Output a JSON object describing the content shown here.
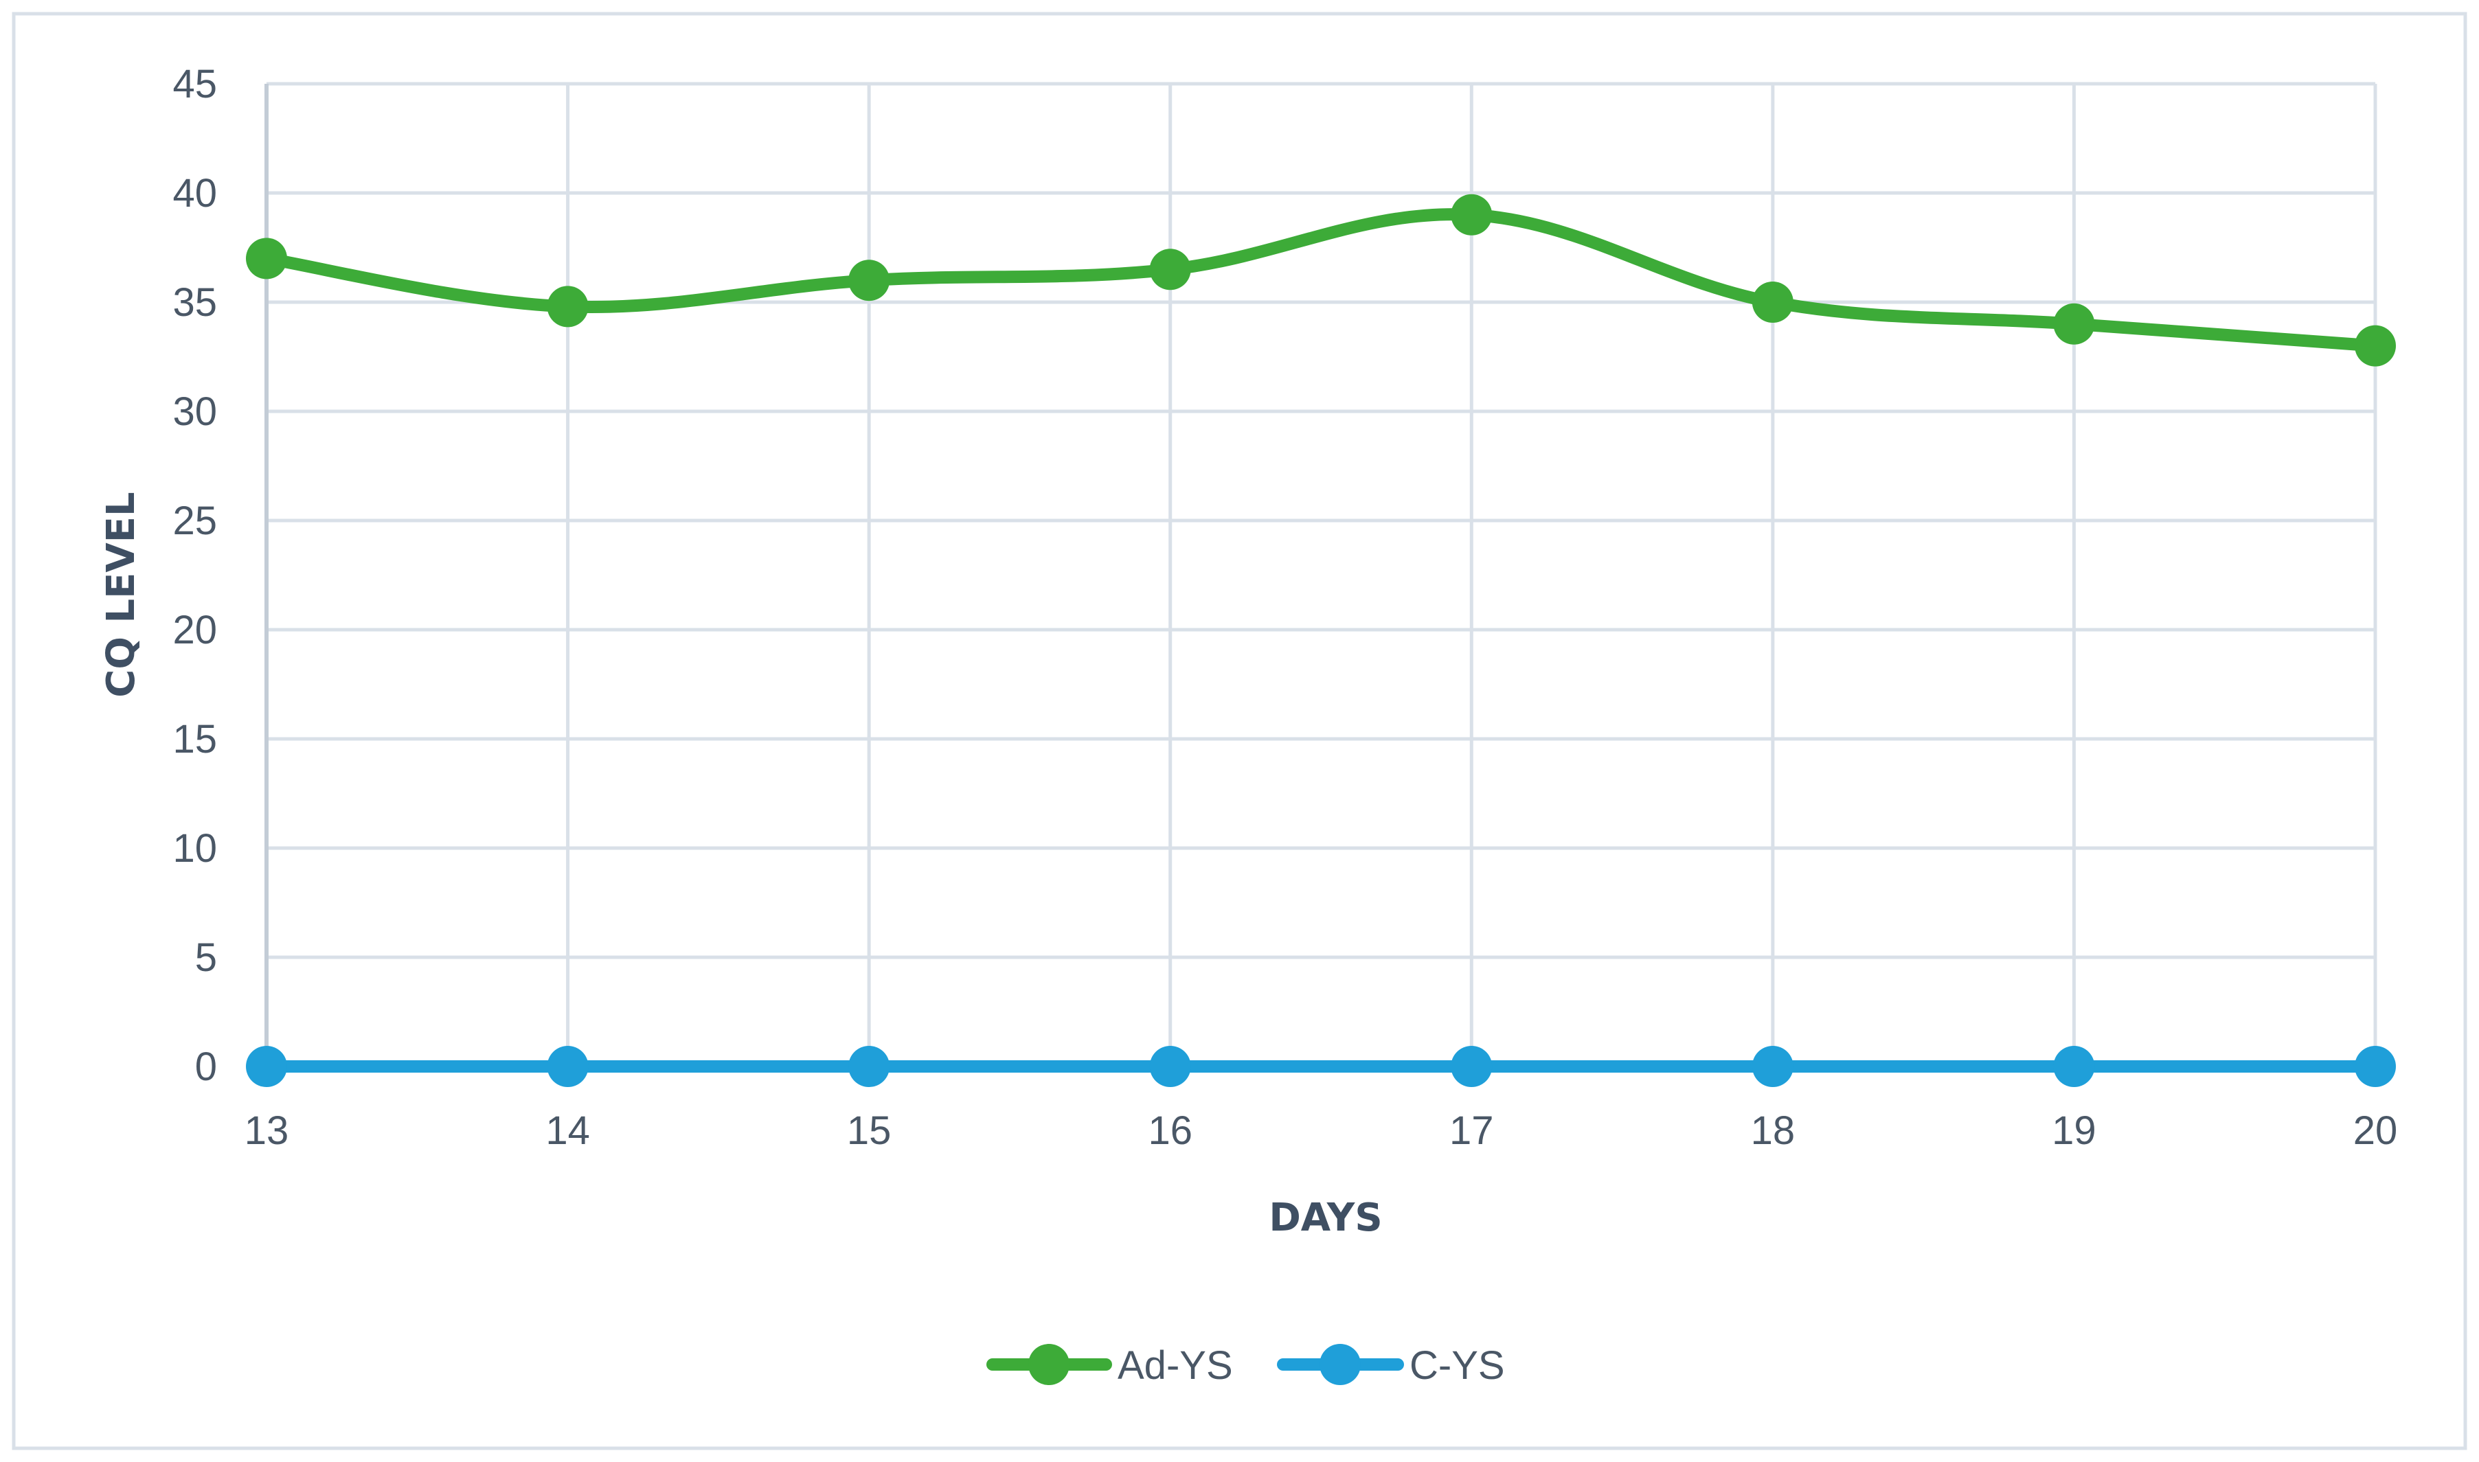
{
  "chart_data": {
    "type": "line",
    "title": "",
    "xlabel": "DAYS",
    "ylabel": "CQ  LEVEL",
    "x": [
      13,
      14,
      15,
      16,
      17,
      18,
      19,
      20
    ],
    "x_tick_labels": [
      "13",
      "14",
      "15",
      "16",
      "17",
      "18",
      "19",
      "20"
    ],
    "y_tick_labels": [
      "0",
      "5",
      "10",
      "15",
      "20",
      "25",
      "30",
      "35",
      "40",
      "45"
    ],
    "ylim": [
      0,
      45
    ],
    "y_step": 5,
    "grid": true,
    "smooth": true,
    "legend_position": "bottom",
    "series": [
      {
        "name": "Ad-YS",
        "color": "#3dab38",
        "values": [
          37,
          34.8,
          36,
          36.5,
          39,
          35,
          34,
          33
        ]
      },
      {
        "name": "C-YS",
        "color": "#1f9fd9",
        "values": [
          0,
          0,
          0,
          0,
          0,
          0,
          0,
          0
        ]
      }
    ],
    "colors": {
      "grid": "#d9e0e8",
      "axis": "#c3ccd6",
      "frame": "#d9e0e8",
      "text": "#4a5766",
      "title_text": "#3f4f63"
    }
  }
}
